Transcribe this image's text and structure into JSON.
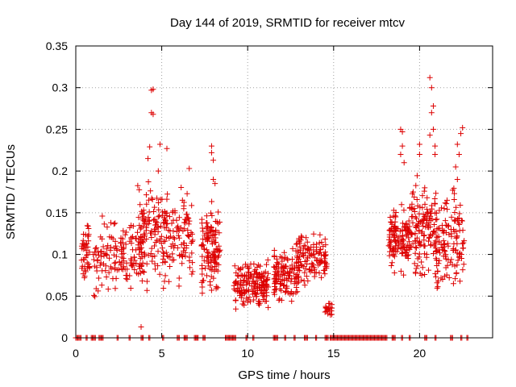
{
  "chart_data": {
    "type": "scatter",
    "title": "Day 144 of 2019, SRMTID for receiver mtcv",
    "xlabel": "GPS time / hours",
    "ylabel": "SRMTID / TECUs",
    "xlim": [
      0,
      24.25
    ],
    "ylim": [
      0,
      0.35
    ],
    "xticks": [
      0,
      5,
      10,
      15,
      20
    ],
    "xtick_labels": [
      "0",
      "5",
      "10",
      "15",
      "20"
    ],
    "yticks": [
      0,
      0.05,
      0.1,
      0.15,
      0.2,
      0.25,
      0.3,
      0.35
    ],
    "ytick_labels": [
      "0",
      "0.05",
      "0.1",
      "0.15",
      "0.2",
      "0.25",
      "0.3",
      "0.35"
    ],
    "grid": true,
    "marker": "+",
    "colors": {
      "series": "#dd0000",
      "grid": "#a0a0a0",
      "frame": "#000000"
    },
    "series": [
      {
        "name": "SRMTID",
        "clusters": [
          {
            "x0": 0.3,
            "x1": 0.8,
            "ymin": 0.04,
            "ymax": 0.16,
            "n": 45
          },
          {
            "x0": 1.0,
            "x1": 2.5,
            "ymin": 0.03,
            "ymax": 0.16,
            "n": 70
          },
          {
            "x0": 2.5,
            "x1": 4.0,
            "ymin": 0.05,
            "ymax": 0.16,
            "n": 90
          },
          {
            "x0": 3.6,
            "x1": 5.2,
            "ymin": 0.04,
            "ymax": 0.2,
            "n": 110
          },
          {
            "x0": 5.0,
            "x1": 6.8,
            "ymin": 0.05,
            "ymax": 0.2,
            "n": 110
          },
          {
            "x0": 7.3,
            "x1": 8.4,
            "ymin": 0.03,
            "ymax": 0.18,
            "n": 120
          },
          {
            "x0": 9.2,
            "x1": 11.2,
            "ymin": 0.03,
            "ymax": 0.1,
            "n": 170
          },
          {
            "x0": 11.5,
            "x1": 13.0,
            "ymin": 0.03,
            "ymax": 0.12,
            "n": 120
          },
          {
            "x0": 12.8,
            "x1": 14.6,
            "ymin": 0.05,
            "ymax": 0.14,
            "n": 120
          },
          {
            "x0": 14.5,
            "x1": 14.9,
            "ymin": 0.02,
            "ymax": 0.05,
            "n": 18
          },
          {
            "x0": 18.2,
            "x1": 19.4,
            "ymin": 0.07,
            "ymax": 0.17,
            "n": 120
          },
          {
            "x0": 19.4,
            "x1": 21.0,
            "ymin": 0.06,
            "ymax": 0.2,
            "n": 140
          },
          {
            "x0": 20.9,
            "x1": 22.6,
            "ymin": 0.03,
            "ymax": 0.2,
            "n": 130
          }
        ],
        "outliers": [
          {
            "x": 4.4,
            "y": 0.297
          },
          {
            "x": 4.5,
            "y": 0.298
          },
          {
            "x": 4.5,
            "y": 0.268
          },
          {
            "x": 4.4,
            "y": 0.27
          },
          {
            "x": 4.3,
            "y": 0.229
          },
          {
            "x": 4.9,
            "y": 0.232
          },
          {
            "x": 5.3,
            "y": 0.227
          },
          {
            "x": 4.2,
            "y": 0.215
          },
          {
            "x": 4.8,
            "y": 0.2
          },
          {
            "x": 6.6,
            "y": 0.203
          },
          {
            "x": 3.8,
            "y": 0.013
          },
          {
            "x": 7.9,
            "y": 0.23
          },
          {
            "x": 7.9,
            "y": 0.222
          },
          {
            "x": 8.0,
            "y": 0.213
          },
          {
            "x": 8.0,
            "y": 0.19
          },
          {
            "x": 8.1,
            "y": 0.185
          },
          {
            "x": 20.6,
            "y": 0.312
          },
          {
            "x": 20.7,
            "y": 0.3
          },
          {
            "x": 20.8,
            "y": 0.278
          },
          {
            "x": 20.7,
            "y": 0.27
          },
          {
            "x": 20.8,
            "y": 0.25
          },
          {
            "x": 20.6,
            "y": 0.243
          },
          {
            "x": 20.9,
            "y": 0.23
          },
          {
            "x": 20.9,
            "y": 0.22
          },
          {
            "x": 18.9,
            "y": 0.25
          },
          {
            "x": 19.0,
            "y": 0.247
          },
          {
            "x": 19.0,
            "y": 0.23
          },
          {
            "x": 18.9,
            "y": 0.22
          },
          {
            "x": 19.1,
            "y": 0.21
          },
          {
            "x": 20.0,
            "y": 0.232
          },
          {
            "x": 20.0,
            "y": 0.22
          },
          {
            "x": 22.5,
            "y": 0.252
          },
          {
            "x": 22.4,
            "y": 0.245
          },
          {
            "x": 22.2,
            "y": 0.232
          },
          {
            "x": 22.3,
            "y": 0.22
          },
          {
            "x": 22.1,
            "y": 0.205
          },
          {
            "x": 22.2,
            "y": 0.19
          },
          {
            "x": 20.3,
            "y": 0.18
          },
          {
            "x": 21.6,
            "y": 0.165
          }
        ],
        "zero_runs": [
          [
            0.0,
            0.35
          ],
          [
            0.6,
            0.7
          ],
          [
            0.9,
            1.15
          ],
          [
            1.35,
            1.6
          ],
          [
            2.4,
            2.5
          ],
          [
            3.1,
            3.2
          ],
          [
            3.8,
            3.95
          ],
          [
            4.25,
            4.35
          ],
          [
            5.05,
            5.15
          ],
          [
            5.9,
            6.05
          ],
          [
            6.3,
            6.5
          ],
          [
            6.9,
            7.0
          ],
          [
            7.0,
            7.15
          ],
          [
            7.4,
            7.55
          ],
          [
            8.7,
            9.3
          ],
          [
            9.9,
            10.0
          ],
          [
            10.3,
            10.4
          ],
          [
            11.5,
            11.75
          ],
          [
            12.15,
            12.25
          ],
          [
            12.7,
            12.8
          ],
          [
            13.3,
            13.5
          ],
          [
            13.95,
            14.05
          ],
          [
            14.5,
            14.7
          ],
          [
            14.8,
            18.1
          ],
          [
            18.4,
            18.6
          ],
          [
            18.95,
            19.05
          ],
          [
            19.4,
            19.5
          ],
          [
            20.3,
            20.45
          ],
          [
            20.9,
            21.0
          ],
          [
            21.8,
            21.95
          ],
          [
            22.4,
            22.5
          ],
          [
            22.75,
            22.85
          ]
        ],
        "seed": 144
      }
    ]
  }
}
